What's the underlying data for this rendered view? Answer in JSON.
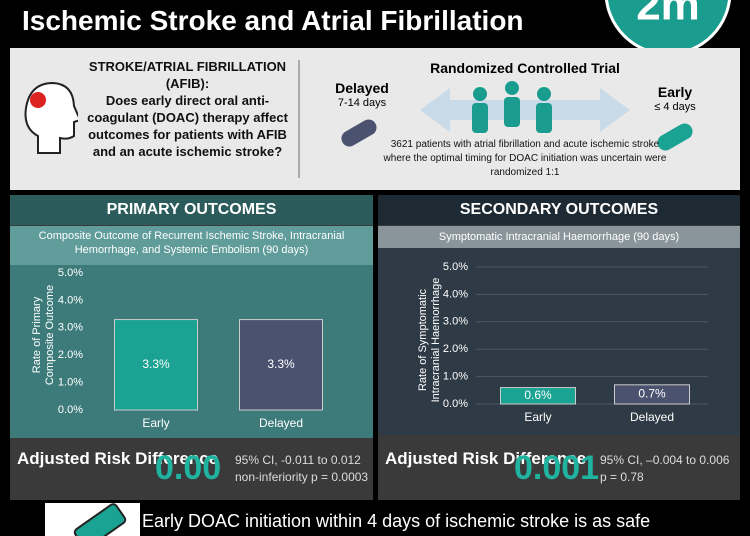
{
  "header": {
    "title": "Ischemic Stroke and Atrial Fibrillation",
    "logo": "2m"
  },
  "intro": {
    "question_heading": "STROKE/ATRIAL FIBRILLATION (AFIB):",
    "question": "Does early direct oral anti-coagulant (DOAC) therapy affect outcomes for patients with AFIB and an acute ischemic stroke?",
    "trial": "Randomized Controlled Trial",
    "delayed": {
      "label": "Delayed",
      "days": "7-14 days"
    },
    "early": {
      "label": "Early",
      "days": "≤ 4 days"
    },
    "description": "3621 patients with atrial fibrillation and acute ischemic stroke where the optimal timing for DOAC initiation was uncertain were randomized 1:1"
  },
  "panels": [
    {
      "heading": "PRIMARY OUTCOMES",
      "result_label": "Adjusted Risk Difference",
      "result": "0.00",
      "ci": "95% CI, -0.011 to 0.012",
      "p": "non-inferiority p = 0.0003"
    },
    {
      "heading": "SECONDARY OUTCOMES",
      "result_label": "Adjusted Risk Difference",
      "result": "0.001",
      "ci": "95% CI, –0.004 to 0.006",
      "p": "p = 0.78"
    }
  ],
  "footer": {
    "text": "Early DOAC initiation within 4 days of ischemic stroke is as safe"
  },
  "chart_data": [
    {
      "type": "bar",
      "title": "Composite Outcome of Recurrent Ischemic Stroke, Intracranial Hemorrhage, and Systemic Embolism (90 days)",
      "y_label": "Rate of Primary Composite Outcome",
      "categories": [
        "Early",
        "Delayed"
      ],
      "values": [
        3.3,
        3.3
      ],
      "value_labels": [
        "3.3%",
        "3.3%"
      ],
      "colors": [
        "#1aa292",
        "#4a5270"
      ],
      "ylim": [
        0,
        5
      ],
      "yticks": [
        {
          "value": 0,
          "label": "0.0%"
        },
        {
          "value": 1,
          "label": "1.0%"
        },
        {
          "value": 2,
          "label": "2.0%"
        },
        {
          "value": 3,
          "label": "3.0%"
        },
        {
          "value": 4,
          "label": "4.0%"
        },
        {
          "value": 5,
          "label": "5.0%"
        }
      ],
      "grid": false
    },
    {
      "type": "bar",
      "title": "Symptomatic Intracranial Haemorrhage (90 days)",
      "y_label": "Rate of Symptomatic Intracranial Haemorrhage",
      "categories": [
        "Early",
        "Delayed"
      ],
      "values": [
        0.6,
        0.7
      ],
      "value_labels": [
        "0.6%",
        "0.7%"
      ],
      "colors": [
        "#1aa292",
        "#4a5270"
      ],
      "ylim": [
        0,
        5
      ],
      "yticks": [
        {
          "value": 0,
          "label": "0.0%"
        },
        {
          "value": 1,
          "label": "1.0%"
        },
        {
          "value": 2,
          "label": "2.0%"
        },
        {
          "value": 3,
          "label": "3.0%"
        },
        {
          "value": 4,
          "label": "4.0%"
        },
        {
          "value": 5,
          "label": "5.0%"
        }
      ],
      "grid": true
    }
  ]
}
